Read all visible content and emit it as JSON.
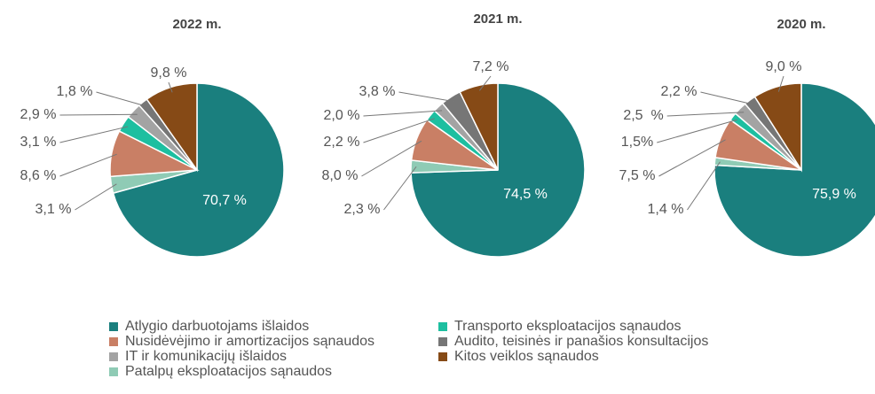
{
  "legend": {
    "labels": [
      "Atlygio darbuotojams išlaidos",
      "Patalpų eksploatacijos sąnaudos",
      "Nusidėvėjimo ir amortizacijos sąnaudos",
      "Transporto eksploatacijos sąnaudos",
      "IT ir komunikacijų išlaidos",
      "Audito, teisinės ir panašios konsultacijos",
      "Kitos veiklos sąnaudos"
    ],
    "colors": [
      "#1a7f7e",
      "#8fcbb5",
      "#c97f65",
      "#1dbfa0",
      "#a3a3a3",
      "#767676",
      "#864a16"
    ]
  },
  "chart_data": [
    {
      "type": "pie",
      "title": "2022 m.",
      "values": [
        70.7,
        3.1,
        8.6,
        3.1,
        2.9,
        1.8,
        9.8
      ],
      "value_labels": [
        "70,7 %",
        "3,1 %",
        "8,6 %",
        "3,1 %",
        "2,9 %",
        "1,8 %",
        "9,8 %"
      ]
    },
    {
      "type": "pie",
      "title": "2021 m.",
      "values": [
        74.5,
        2.3,
        8.0,
        2.2,
        2.0,
        3.8,
        7.2
      ],
      "value_labels": [
        "74,5 %",
        "2,3 %",
        "8,0 %",
        "2,2 %",
        "2,0 %",
        "3,8 %",
        "7,2 %"
      ]
    },
    {
      "type": "pie",
      "title": "2020 m.",
      "values": [
        75.9,
        1.4,
        7.5,
        1.5,
        2.5,
        2.2,
        9.0
      ],
      "value_labels": [
        "75,9 %",
        "1,4 %",
        "7,5 %",
        "1,5%",
        "2,5  %",
        "2,2 %",
        "9,0 %"
      ]
    }
  ]
}
